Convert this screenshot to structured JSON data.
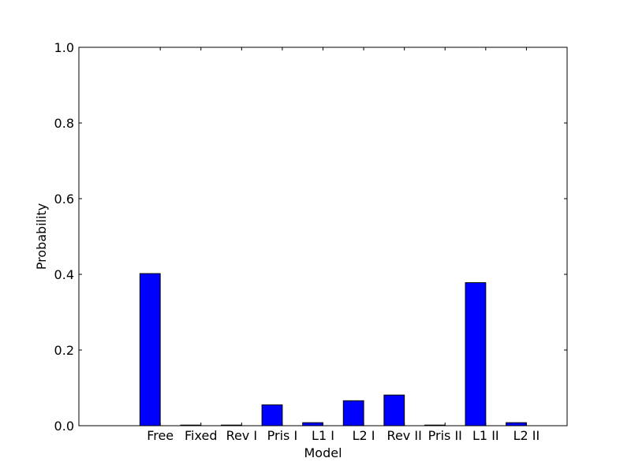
{
  "chart_data": {
    "type": "bar",
    "categories": [
      "Free",
      "Fixed",
      "Rev I",
      "Pris I",
      "L1 I",
      "L2 I",
      "Rev II",
      "Pris II",
      "L1 II",
      "L2 II"
    ],
    "values": [
      0.402,
      0.0,
      0.0,
      0.055,
      0.008,
      0.066,
      0.081,
      0.0,
      0.378,
      0.008
    ],
    "title": "",
    "xlabel": "Model",
    "ylabel": "Probability",
    "ylim": [
      0.0,
      1.0
    ],
    "yticks": [
      "0.0",
      "0.2",
      "0.4",
      "0.6",
      "0.8",
      "1.0"
    ],
    "grid": false,
    "bar_color": "#0000ff",
    "edge_color": "#000000"
  }
}
